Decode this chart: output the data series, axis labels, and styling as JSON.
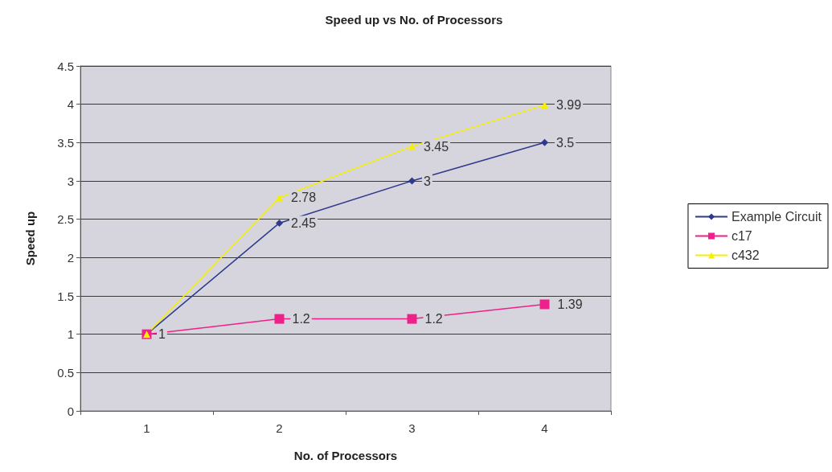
{
  "chart_data": {
    "type": "line",
    "title": "Speed up vs No. of Processors",
    "xlabel": "No. of Processors",
    "ylabel": "Speed up",
    "categories": [
      "1",
      "2",
      "3",
      "4"
    ],
    "series": [
      {
        "name": "Example Circuit",
        "color": "#2e3a8c",
        "marker": "diamond",
        "values": [
          1,
          2.45,
          3,
          3.5
        ],
        "value_labels": [
          "1",
          "2.45",
          "3",
          "3.5"
        ]
      },
      {
        "name": "c17",
        "color": "#f0208a",
        "marker": "square",
        "values": [
          1,
          1.2,
          1.2,
          1.39
        ],
        "value_labels": [
          null,
          "1.2",
          "1.2",
          "1.39"
        ]
      },
      {
        "name": "c432",
        "color": "#f5f000",
        "marker": "triangle",
        "values": [
          1,
          2.78,
          3.45,
          3.99
        ],
        "value_labels": [
          null,
          "2.78",
          "3.45",
          "3.99"
        ]
      }
    ],
    "ylim": [
      0,
      4.5
    ],
    "yticks": [
      0,
      0.5,
      1,
      1.5,
      2,
      2.5,
      3,
      3.5,
      4,
      4.5
    ],
    "grid": "y",
    "legend": "right"
  }
}
